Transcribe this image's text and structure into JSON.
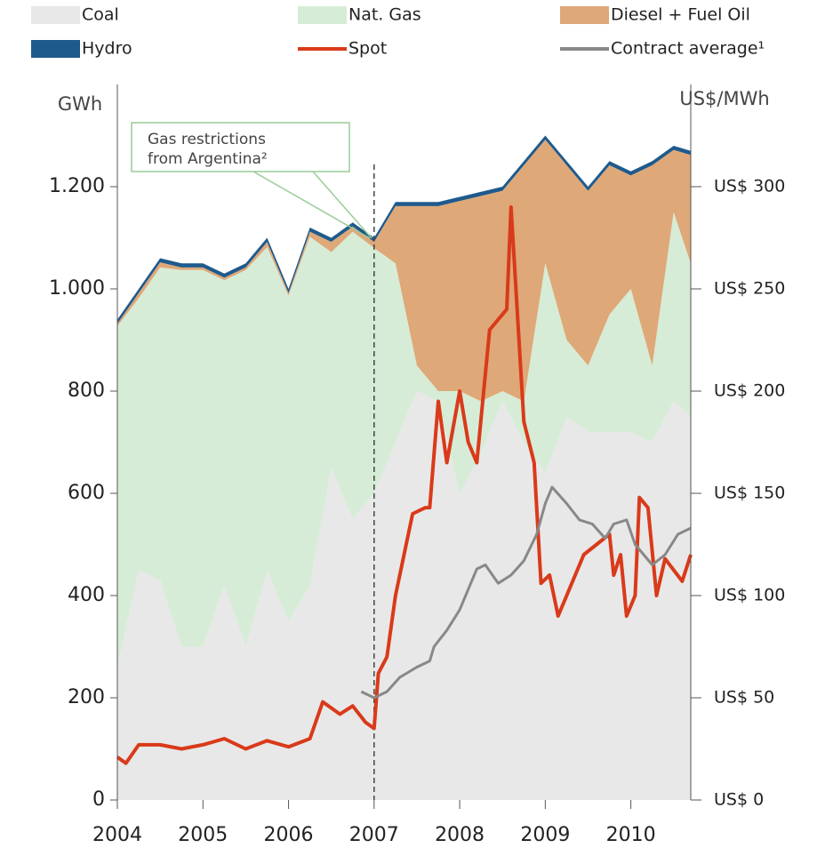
{
  "chart_data": {
    "type": "stacked_area_line",
    "ylabel": "GWh",
    "y2label": "US$/MWh",
    "annotation": [
      "Gas restrictions",
      "from Argentina²"
    ],
    "annotation_x": 2007,
    "xlim": [
      2004,
      2010.7
    ],
    "xticks": [
      2004,
      2005,
      2006,
      2007,
      2008,
      2009,
      2010
    ],
    "ylim": [
      0,
      1400
    ],
    "yticks": [
      0,
      200,
      400,
      600,
      800,
      {
        "value": 1000,
        "label": "1.000"
      },
      {
        "value": 1200,
        "label": "1.200"
      }
    ],
    "y2lim": [
      0,
      350
    ],
    "y2ticks": [
      {
        "value": 0,
        "label": "US$ 0"
      },
      {
        "value": 50,
        "label": "US$ 50"
      },
      {
        "value": 100,
        "label": "US$ 100"
      },
      {
        "value": 150,
        "label": "US$ 150"
      },
      {
        "value": 200,
        "label": "US$ 200"
      },
      {
        "value": 250,
        "label": "US$ 250"
      },
      {
        "value": 300,
        "label": "US$ 300"
      }
    ],
    "x": [
      2004.0,
      2004.25,
      2004.5,
      2004.75,
      2005.0,
      2005.25,
      2005.5,
      2005.75,
      2006.0,
      2006.25,
      2006.5,
      2006.75,
      2007.0,
      2007.25,
      2007.5,
      2007.75,
      2008.0,
      2008.25,
      2008.5,
      2008.75,
      2009.0,
      2009.25,
      2009.5,
      2009.75,
      2010.0,
      2010.25,
      2010.5,
      2010.7
    ],
    "series": [
      {
        "name": "Coal",
        "kind": "area",
        "color": "#e8e8e8",
        "values": [
          260,
          450,
          430,
          300,
          300,
          420,
          300,
          450,
          350,
          420,
          650,
          550,
          600,
          700,
          800,
          780,
          600,
          680,
          780,
          700,
          640,
          750,
          720,
          720,
          720,
          700,
          780,
          750
        ]
      },
      {
        "name": "Nat. Gas",
        "kind": "area",
        "color": "#d6ecd6",
        "values": [
          667,
          532,
          612,
          737,
          737,
          597,
          737,
          632,
          637,
          682,
          422,
          562,
          480,
          350,
          50,
          20,
          200,
          100,
          20,
          80,
          410,
          150,
          130,
          230,
          280,
          150,
          370,
          300
        ]
      },
      {
        "name": "Diesel + Fuel Oil",
        "kind": "area",
        "color": "#dfa878",
        "values": [
          5,
          10,
          10,
          5,
          5,
          5,
          5,
          10,
          5,
          10,
          20,
          10,
          12,
          112,
          312,
          362,
          372,
          402,
          392,
          462,
          242,
          342,
          342,
          292,
          222,
          392,
          122,
          212
        ]
      },
      {
        "name": "Hydro",
        "kind": "area",
        "color": "#1f5a8c",
        "values": [
          8,
          8,
          8,
          8,
          8,
          8,
          8,
          8,
          8,
          8,
          8,
          8,
          8,
          8,
          8,
          8,
          8,
          8,
          8,
          8,
          8,
          8,
          8,
          8,
          8,
          8,
          8,
          8
        ]
      },
      {
        "name": "Spot",
        "kind": "line",
        "axis": "y2",
        "color": "#d93a1a",
        "x": [
          2004.0,
          2004.1,
          2004.25,
          2004.5,
          2004.75,
          2005.0,
          2005.25,
          2005.5,
          2005.75,
          2006.0,
          2006.25,
          2006.4,
          2006.6,
          2006.75,
          2006.9,
          2007.0,
          2007.05,
          2007.15,
          2007.25,
          2007.45,
          2007.6,
          2007.65,
          2007.75,
          2007.85,
          2008.0,
          2008.1,
          2008.2,
          2008.35,
          2008.45,
          2008.55,
          2008.6,
          2008.75,
          2008.87,
          2008.95,
          2009.05,
          2009.15,
          2009.3,
          2009.45,
          2009.6,
          2009.75,
          2009.8,
          2009.88,
          2009.95,
          2010.05,
          2010.1,
          2010.2,
          2010.3,
          2010.4,
          2010.6,
          2010.7
        ],
        "values": [
          21,
          18,
          27,
          27,
          25,
          27,
          30,
          25,
          29,
          26,
          30,
          48,
          42,
          46,
          38,
          35,
          62,
          70,
          100,
          140,
          143,
          143,
          195,
          165,
          200,
          175,
          165,
          230,
          235,
          240,
          290,
          185,
          165,
          106,
          110,
          90,
          105,
          120,
          125,
          130,
          110,
          120,
          90,
          100,
          148,
          143,
          100,
          118,
          107,
          120
        ]
      },
      {
        "name": "Contract average¹",
        "kind": "line",
        "axis": "y2",
        "color": "#888888",
        "x": [
          2006.85,
          2007.0,
          2007.15,
          2007.3,
          2007.5,
          2007.65,
          2007.7,
          2007.85,
          2008.0,
          2008.2,
          2008.3,
          2008.45,
          2008.6,
          2008.75,
          2008.9,
          2009.0,
          2009.08,
          2009.25,
          2009.4,
          2009.55,
          2009.7,
          2009.8,
          2009.95,
          2010.05,
          2010.25,
          2010.4,
          2010.55,
          2010.7
        ],
        "values": [
          53,
          50,
          53,
          60,
          65,
          68,
          75,
          83,
          93,
          113,
          115,
          106,
          110,
          117,
          130,
          145,
          153,
          145,
          137,
          135,
          128,
          135,
          137,
          125,
          115,
          120,
          130,
          133
        ]
      }
    ]
  }
}
